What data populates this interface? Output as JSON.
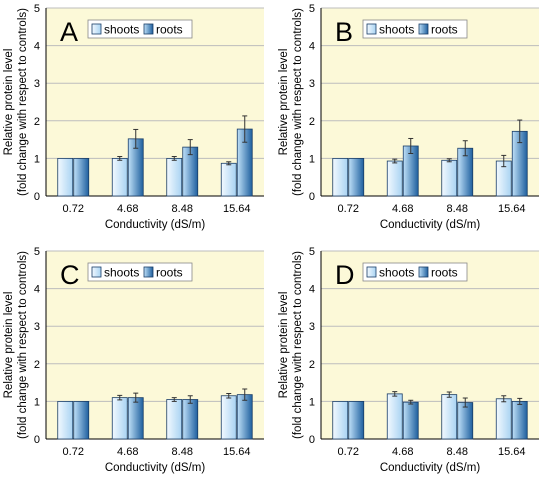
{
  "colors": {
    "plot_bg": "#fcf9d8",
    "gridline": "#bdbdbd",
    "shoots_fill_light": "#f2f9ff",
    "shoots_fill_dark": "#a9d3f2",
    "roots_fill_light": "#bfe0f8",
    "roots_fill_dark": "#1e5f9e",
    "bar_border": "#1a3d66",
    "error_bar": "#333333"
  },
  "chart_data": [
    {
      "panel": "A",
      "type": "bar",
      "categories": [
        "0.72",
        "4.68",
        "8.48",
        "15.64"
      ],
      "xlabel": "Conductivity (dS/m)",
      "ylabel": [
        "Relative protein level",
        "(fold change with respect to controls)"
      ],
      "ylim": [
        0,
        5
      ],
      "yticks": [
        "0",
        "1",
        "2",
        "3",
        "4",
        "5"
      ],
      "grid": "horizontal",
      "legend": "top-left",
      "series": [
        {
          "name": "shoots",
          "values": [
            1.0,
            1.0,
            1.0,
            0.87
          ],
          "errors": [
            0,
            0.05,
            0.05,
            0.04
          ]
        },
        {
          "name": "roots",
          "values": [
            1.0,
            1.52,
            1.3,
            1.78
          ],
          "errors": [
            0,
            0.25,
            0.2,
            0.35
          ]
        }
      ]
    },
    {
      "panel": "B",
      "type": "bar",
      "categories": [
        "0.72",
        "4.68",
        "8.48",
        "15.64"
      ],
      "xlabel": "Conductivity (dS/m)",
      "ylabel": [
        "Relative protein level",
        "(fold change with respect to controls)"
      ],
      "ylim": [
        0,
        5
      ],
      "yticks": [
        "0",
        "1",
        "2",
        "3",
        "4",
        "5"
      ],
      "grid": "horizontal",
      "legend": "top-left",
      "series": [
        {
          "name": "shoots",
          "values": [
            1.0,
            0.93,
            0.95,
            0.93
          ],
          "errors": [
            0,
            0.05,
            0.04,
            0.15
          ]
        },
        {
          "name": "roots",
          "values": [
            1.0,
            1.33,
            1.27,
            1.72
          ],
          "errors": [
            0,
            0.2,
            0.2,
            0.3
          ]
        }
      ]
    },
    {
      "panel": "C",
      "type": "bar",
      "categories": [
        "0.72",
        "4.68",
        "8.48",
        "15.64"
      ],
      "xlabel": "Conductivity (dS/m)",
      "ylabel": [
        "Relative protein level",
        "(fold change with respect to controls)"
      ],
      "ylim": [
        0,
        5
      ],
      "yticks": [
        "0",
        "1",
        "2",
        "3",
        "4",
        "5"
      ],
      "grid": "horizontal",
      "legend": "top-left",
      "series": [
        {
          "name": "shoots",
          "values": [
            1.0,
            1.1,
            1.05,
            1.15
          ],
          "errors": [
            0,
            0.06,
            0.05,
            0.06
          ]
        },
        {
          "name": "roots",
          "values": [
            1.0,
            1.1,
            1.05,
            1.18
          ],
          "errors": [
            0,
            0.12,
            0.1,
            0.15
          ]
        }
      ]
    },
    {
      "panel": "D",
      "type": "bar",
      "categories": [
        "0.72",
        "4.68",
        "8.48",
        "15.64"
      ],
      "xlabel": "Conductivity (dS/m)",
      "ylabel": [
        "Relative protein level",
        "(fold change with respect to controls)"
      ],
      "ylim": [
        0,
        5
      ],
      "yticks": [
        "0",
        "1",
        "2",
        "3",
        "4",
        "5"
      ],
      "grid": "horizontal",
      "legend": "top-left",
      "series": [
        {
          "name": "shoots",
          "values": [
            1.0,
            1.2,
            1.18,
            1.07
          ],
          "errors": [
            0,
            0.06,
            0.07,
            0.08
          ]
        },
        {
          "name": "roots",
          "values": [
            1.0,
            0.98,
            0.97,
            1.0
          ],
          "errors": [
            0,
            0.05,
            0.12,
            0.08
          ]
        }
      ]
    }
  ]
}
